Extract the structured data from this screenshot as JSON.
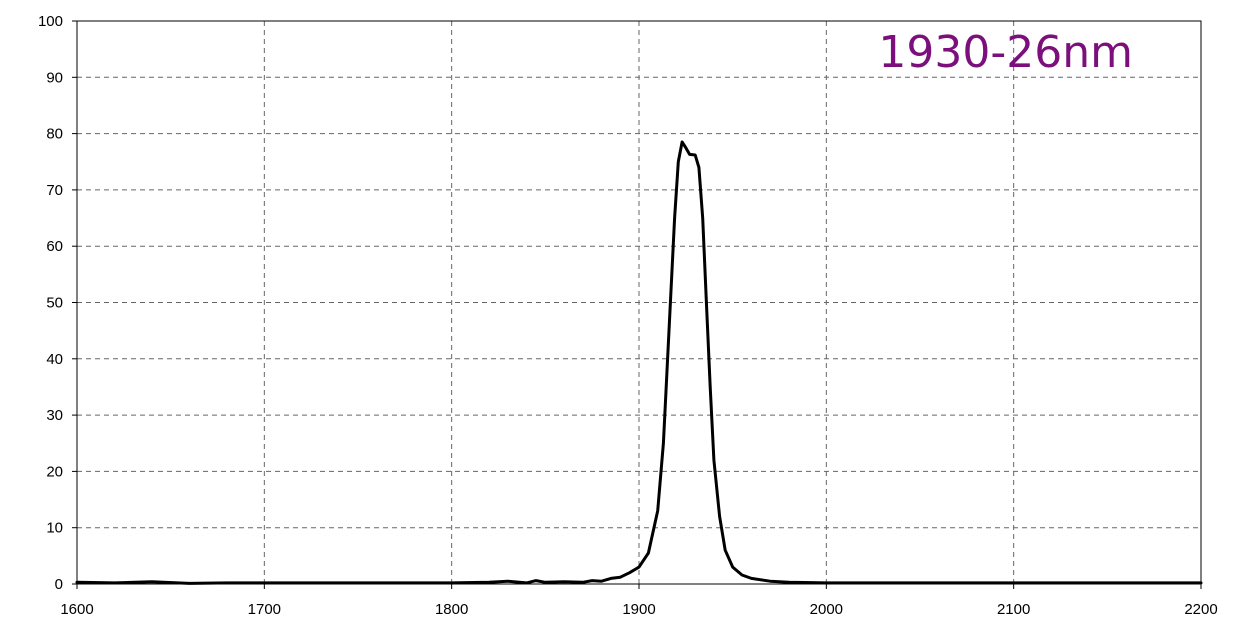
{
  "chart_data": {
    "type": "line",
    "title": "",
    "xlabel": "",
    "ylabel": "",
    "xlim": [
      1600,
      2200
    ],
    "ylim": [
      0,
      100
    ],
    "x_ticks": [
      1600,
      1700,
      1800,
      1900,
      2000,
      2100,
      2200
    ],
    "y_ticks": [
      0,
      10,
      20,
      30,
      40,
      50,
      60,
      70,
      80,
      90,
      100
    ],
    "grid": true,
    "grid_style": "dashed",
    "annotation": {
      "text": "1930-26nm",
      "color": "#7b0f7b",
      "placement": "top-right"
    },
    "series": [
      {
        "color": "#000000",
        "points": [
          [
            1600,
            0.3
          ],
          [
            1620,
            0.2
          ],
          [
            1640,
            0.4
          ],
          [
            1660,
            0.1
          ],
          [
            1680,
            0.2
          ],
          [
            1700,
            0.2
          ],
          [
            1750,
            0.2
          ],
          [
            1800,
            0.2
          ],
          [
            1820,
            0.3
          ],
          [
            1830,
            0.5
          ],
          [
            1840,
            0.2
          ],
          [
            1845,
            0.6
          ],
          [
            1850,
            0.3
          ],
          [
            1860,
            0.4
          ],
          [
            1870,
            0.3
          ],
          [
            1875,
            0.6
          ],
          [
            1880,
            0.5
          ],
          [
            1885,
            1.0
          ],
          [
            1890,
            1.2
          ],
          [
            1895,
            2.0
          ],
          [
            1900,
            3.0
          ],
          [
            1905,
            5.5
          ],
          [
            1910,
            13.0
          ],
          [
            1913,
            25.0
          ],
          [
            1916,
            45.0
          ],
          [
            1919,
            65.0
          ],
          [
            1921,
            75.0
          ],
          [
            1923,
            78.5
          ],
          [
            1925,
            77.5
          ],
          [
            1927,
            76.3
          ],
          [
            1930,
            76.2
          ],
          [
            1932,
            74.0
          ],
          [
            1934,
            65.0
          ],
          [
            1936,
            50.0
          ],
          [
            1938,
            35.0
          ],
          [
            1940,
            22.0
          ],
          [
            1943,
            12.0
          ],
          [
            1946,
            6.0
          ],
          [
            1950,
            3.0
          ],
          [
            1955,
            1.6
          ],
          [
            1960,
            1.0
          ],
          [
            1970,
            0.5
          ],
          [
            1980,
            0.3
          ],
          [
            2000,
            0.2
          ],
          [
            2050,
            0.2
          ],
          [
            2100,
            0.2
          ],
          [
            2150,
            0.2
          ],
          [
            2200,
            0.2
          ]
        ]
      }
    ]
  }
}
